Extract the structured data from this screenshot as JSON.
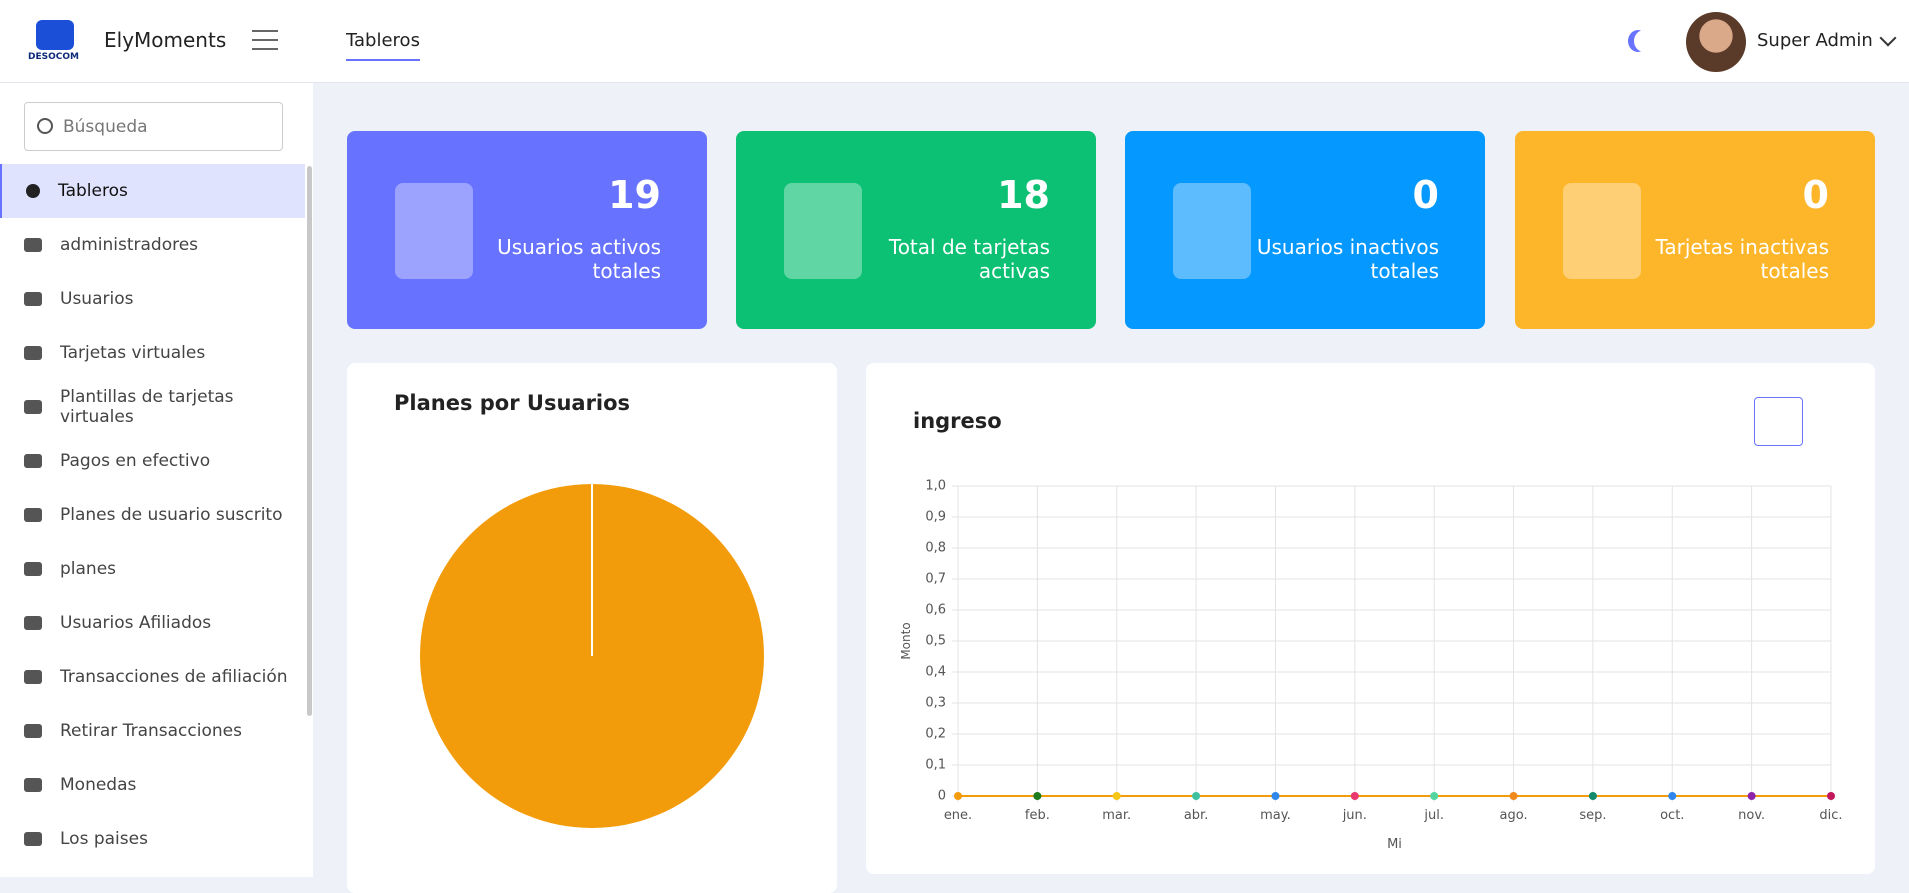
{
  "header": {
    "logo_text": "DESOCOM",
    "brand": "ElyMoments",
    "tab": "Tableros",
    "user": "Super Admin"
  },
  "sidebar": {
    "search_placeholder": "Búsqueda",
    "items": [
      "Tableros",
      "administradores",
      "Usuarios",
      "Tarjetas virtuales",
      "Plantillas de tarjetas virtuales",
      "Pagos en efectivo",
      "Planes de usuario suscrito",
      "planes",
      "Usuarios Afiliados",
      "Transacciones de afiliación",
      "Retirar Transacciones",
      "Monedas",
      "Los paises"
    ]
  },
  "stats": [
    {
      "value": 19,
      "label": "Usuarios activos totales",
      "color": "#6772fe"
    },
    {
      "value": 18,
      "label": "Total de tarjetas activas",
      "color": "#0cc174"
    },
    {
      "value": 0,
      "label": "Usuarios inactivos totales",
      "color": "#0598fe"
    },
    {
      "value": 0,
      "label": "Tarjetas inactivas totales",
      "color": "#fdb62a"
    }
  ],
  "chart_data": [
    {
      "type": "pie",
      "title": "Planes por Usuarios",
      "values": [
        100
      ],
      "colors": [
        "#f39c0b"
      ]
    },
    {
      "type": "line",
      "title": "ingreso",
      "y_label": "Monto",
      "x_label": "Mi",
      "categories": [
        "ene.",
        "feb.",
        "mar.",
        "abr.",
        "may.",
        "jun.",
        "jul.",
        "ago.",
        "sep.",
        "oct.",
        "nov.",
        "dic."
      ],
      "values": [
        0,
        0,
        0,
        0,
        0,
        0,
        0,
        0,
        0,
        0,
        0,
        0
      ],
      "color": "#f39c0b",
      "point_colors": [
        "#f39c0b",
        "#1e7b1e",
        "#f5c518",
        "#3fc1a0",
        "#2f86eb",
        "#e8386d",
        "#55d6a0",
        "#f08a1d",
        "#138a6b",
        "#2f86eb",
        "#8e24aa",
        "#c2185b"
      ],
      "ylim": [
        0,
        1
      ],
      "yticks": [
        0,
        {
          "value": 0.1,
          "label": "0,1"
        },
        {
          "value": 0.2,
          "label": "0,2"
        },
        {
          "value": 0.3,
          "label": "0,3"
        },
        {
          "value": 0.4,
          "label": "0,4"
        },
        {
          "value": 0.5,
          "label": "0,5"
        },
        {
          "value": 0.6,
          "label": "0,6"
        },
        {
          "value": 0.7,
          "label": "0,7"
        },
        {
          "value": 0.8,
          "label": "0,8"
        },
        {
          "value": 0.9,
          "label": "0,9"
        },
        {
          "value": 1,
          "label": "1,0"
        }
      ],
      "grid": true
    }
  ]
}
